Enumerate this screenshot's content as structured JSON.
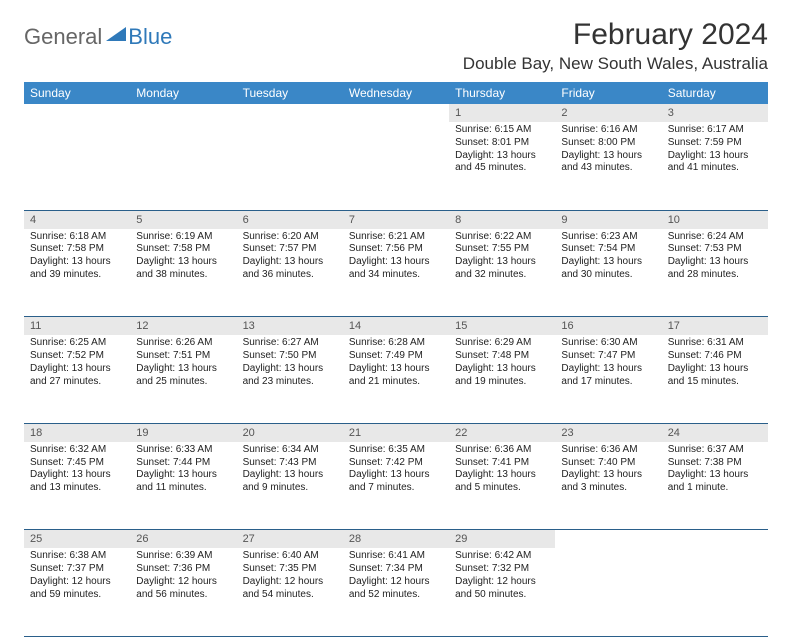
{
  "logo": {
    "general": "General",
    "blue": "Blue",
    "tri_color": "#2f79b9"
  },
  "title": "February 2024",
  "location": "Double Bay, New South Wales, Australia",
  "colors": {
    "header_bg": "#3a87c7",
    "header_fg": "#ffffff",
    "daynum_bg": "#e8e8e8",
    "daynum_fg": "#555555",
    "rule": "#2a5f8a"
  },
  "weekdays": [
    "Sunday",
    "Monday",
    "Tuesday",
    "Wednesday",
    "Thursday",
    "Friday",
    "Saturday"
  ],
  "weeks": [
    [
      null,
      null,
      null,
      null,
      {
        "n": "1",
        "sr": "Sunrise: 6:15 AM",
        "ss": "Sunset: 8:01 PM",
        "d1": "Daylight: 13 hours",
        "d2": "and 45 minutes."
      },
      {
        "n": "2",
        "sr": "Sunrise: 6:16 AM",
        "ss": "Sunset: 8:00 PM",
        "d1": "Daylight: 13 hours",
        "d2": "and 43 minutes."
      },
      {
        "n": "3",
        "sr": "Sunrise: 6:17 AM",
        "ss": "Sunset: 7:59 PM",
        "d1": "Daylight: 13 hours",
        "d2": "and 41 minutes."
      }
    ],
    [
      {
        "n": "4",
        "sr": "Sunrise: 6:18 AM",
        "ss": "Sunset: 7:58 PM",
        "d1": "Daylight: 13 hours",
        "d2": "and 39 minutes."
      },
      {
        "n": "5",
        "sr": "Sunrise: 6:19 AM",
        "ss": "Sunset: 7:58 PM",
        "d1": "Daylight: 13 hours",
        "d2": "and 38 minutes."
      },
      {
        "n": "6",
        "sr": "Sunrise: 6:20 AM",
        "ss": "Sunset: 7:57 PM",
        "d1": "Daylight: 13 hours",
        "d2": "and 36 minutes."
      },
      {
        "n": "7",
        "sr": "Sunrise: 6:21 AM",
        "ss": "Sunset: 7:56 PM",
        "d1": "Daylight: 13 hours",
        "d2": "and 34 minutes."
      },
      {
        "n": "8",
        "sr": "Sunrise: 6:22 AM",
        "ss": "Sunset: 7:55 PM",
        "d1": "Daylight: 13 hours",
        "d2": "and 32 minutes."
      },
      {
        "n": "9",
        "sr": "Sunrise: 6:23 AM",
        "ss": "Sunset: 7:54 PM",
        "d1": "Daylight: 13 hours",
        "d2": "and 30 minutes."
      },
      {
        "n": "10",
        "sr": "Sunrise: 6:24 AM",
        "ss": "Sunset: 7:53 PM",
        "d1": "Daylight: 13 hours",
        "d2": "and 28 minutes."
      }
    ],
    [
      {
        "n": "11",
        "sr": "Sunrise: 6:25 AM",
        "ss": "Sunset: 7:52 PM",
        "d1": "Daylight: 13 hours",
        "d2": "and 27 minutes."
      },
      {
        "n": "12",
        "sr": "Sunrise: 6:26 AM",
        "ss": "Sunset: 7:51 PM",
        "d1": "Daylight: 13 hours",
        "d2": "and 25 minutes."
      },
      {
        "n": "13",
        "sr": "Sunrise: 6:27 AM",
        "ss": "Sunset: 7:50 PM",
        "d1": "Daylight: 13 hours",
        "d2": "and 23 minutes."
      },
      {
        "n": "14",
        "sr": "Sunrise: 6:28 AM",
        "ss": "Sunset: 7:49 PM",
        "d1": "Daylight: 13 hours",
        "d2": "and 21 minutes."
      },
      {
        "n": "15",
        "sr": "Sunrise: 6:29 AM",
        "ss": "Sunset: 7:48 PM",
        "d1": "Daylight: 13 hours",
        "d2": "and 19 minutes."
      },
      {
        "n": "16",
        "sr": "Sunrise: 6:30 AM",
        "ss": "Sunset: 7:47 PM",
        "d1": "Daylight: 13 hours",
        "d2": "and 17 minutes."
      },
      {
        "n": "17",
        "sr": "Sunrise: 6:31 AM",
        "ss": "Sunset: 7:46 PM",
        "d1": "Daylight: 13 hours",
        "d2": "and 15 minutes."
      }
    ],
    [
      {
        "n": "18",
        "sr": "Sunrise: 6:32 AM",
        "ss": "Sunset: 7:45 PM",
        "d1": "Daylight: 13 hours",
        "d2": "and 13 minutes."
      },
      {
        "n": "19",
        "sr": "Sunrise: 6:33 AM",
        "ss": "Sunset: 7:44 PM",
        "d1": "Daylight: 13 hours",
        "d2": "and 11 minutes."
      },
      {
        "n": "20",
        "sr": "Sunrise: 6:34 AM",
        "ss": "Sunset: 7:43 PM",
        "d1": "Daylight: 13 hours",
        "d2": "and 9 minutes."
      },
      {
        "n": "21",
        "sr": "Sunrise: 6:35 AM",
        "ss": "Sunset: 7:42 PM",
        "d1": "Daylight: 13 hours",
        "d2": "and 7 minutes."
      },
      {
        "n": "22",
        "sr": "Sunrise: 6:36 AM",
        "ss": "Sunset: 7:41 PM",
        "d1": "Daylight: 13 hours",
        "d2": "and 5 minutes."
      },
      {
        "n": "23",
        "sr": "Sunrise: 6:36 AM",
        "ss": "Sunset: 7:40 PM",
        "d1": "Daylight: 13 hours",
        "d2": "and 3 minutes."
      },
      {
        "n": "24",
        "sr": "Sunrise: 6:37 AM",
        "ss": "Sunset: 7:38 PM",
        "d1": "Daylight: 13 hours",
        "d2": "and 1 minute."
      }
    ],
    [
      {
        "n": "25",
        "sr": "Sunrise: 6:38 AM",
        "ss": "Sunset: 7:37 PM",
        "d1": "Daylight: 12 hours",
        "d2": "and 59 minutes."
      },
      {
        "n": "26",
        "sr": "Sunrise: 6:39 AM",
        "ss": "Sunset: 7:36 PM",
        "d1": "Daylight: 12 hours",
        "d2": "and 56 minutes."
      },
      {
        "n": "27",
        "sr": "Sunrise: 6:40 AM",
        "ss": "Sunset: 7:35 PM",
        "d1": "Daylight: 12 hours",
        "d2": "and 54 minutes."
      },
      {
        "n": "28",
        "sr": "Sunrise: 6:41 AM",
        "ss": "Sunset: 7:34 PM",
        "d1": "Daylight: 12 hours",
        "d2": "and 52 minutes."
      },
      {
        "n": "29",
        "sr": "Sunrise: 6:42 AM",
        "ss": "Sunset: 7:32 PM",
        "d1": "Daylight: 12 hours",
        "d2": "and 50 minutes."
      },
      null,
      null
    ]
  ]
}
